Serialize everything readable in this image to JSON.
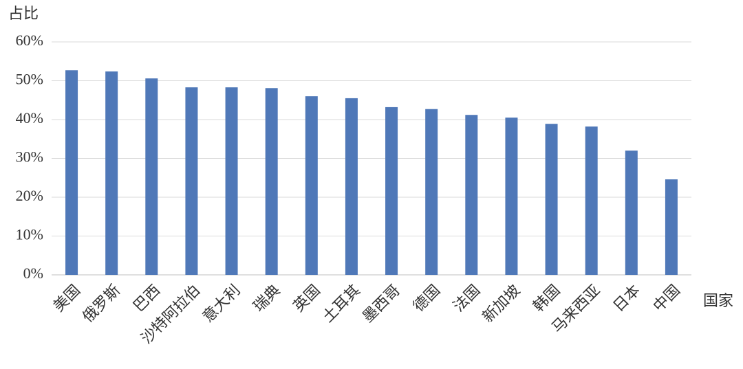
{
  "chart_data": {
    "type": "bar",
    "y_label": "占比",
    "x_label": "国家",
    "categories": [
      "美国",
      "俄罗斯",
      "巴西",
      "沙特阿拉伯",
      "意大利",
      "瑞典",
      "英国",
      "土耳其",
      "墨西哥",
      "德国",
      "法国",
      "新加坡",
      "韩国",
      "马来西亚",
      "日本",
      "中国"
    ],
    "values": [
      52.7,
      52.4,
      50.6,
      48.3,
      48.3,
      48.1,
      46.0,
      45.5,
      43.2,
      42.7,
      41.2,
      40.5,
      38.9,
      38.2,
      32.0,
      24.6
    ],
    "color": "#4f78b8",
    "ylim": [
      0,
      60
    ],
    "yticks": [
      {
        "value": 0,
        "label": "0%"
      },
      {
        "value": 10,
        "label": "10%"
      },
      {
        "value": 20,
        "label": "20%"
      },
      {
        "value": 30,
        "label": "30%"
      },
      {
        "value": 40,
        "label": "40%"
      },
      {
        "value": 50,
        "label": "50%"
      },
      {
        "value": 60,
        "label": "60%"
      }
    ],
    "grid": true
  }
}
